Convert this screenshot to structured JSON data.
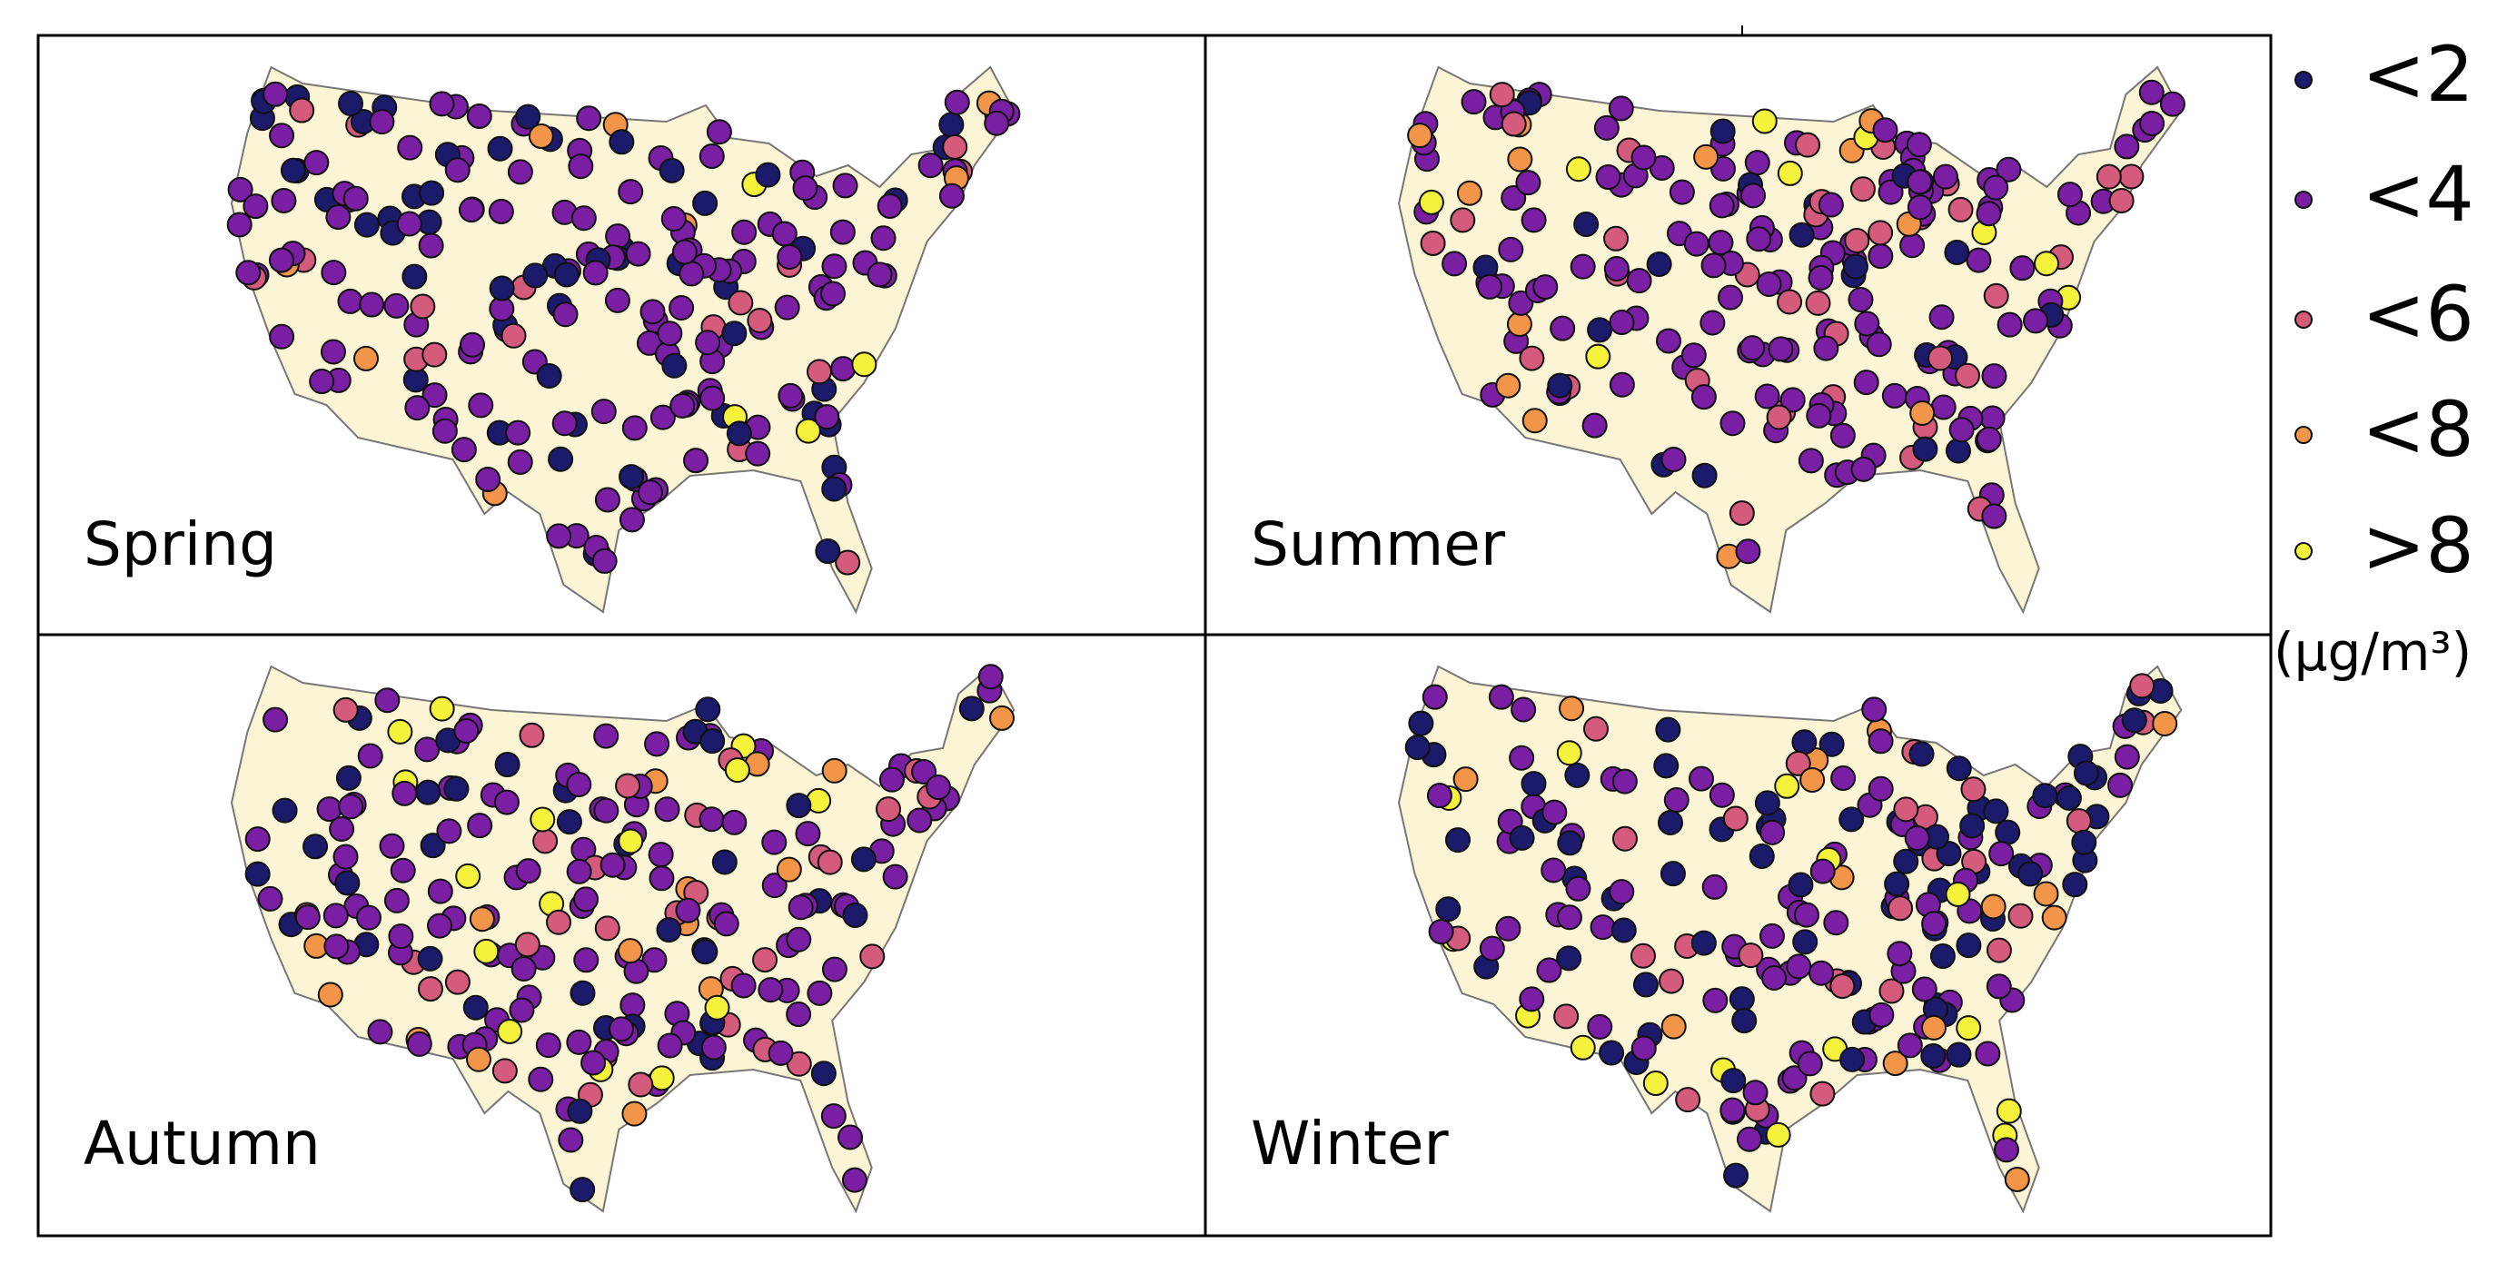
{
  "panels": [
    {
      "label": "Spring"
    },
    {
      "label": "Summer"
    },
    {
      "label": "Autumn"
    },
    {
      "label": "Winter"
    }
  ],
  "legend": {
    "items": [
      {
        "label": "<2",
        "color": "#1c1a6b"
      },
      {
        "label": "<4",
        "color": "#7a1fa3"
      },
      {
        "label": "<6",
        "color": "#d45b7c"
      },
      {
        "label": "<8",
        "color": "#f29548"
      },
      {
        "label": ">8",
        "color": "#f4f23b"
      }
    ],
    "unit": "(μg/m³)"
  }
}
